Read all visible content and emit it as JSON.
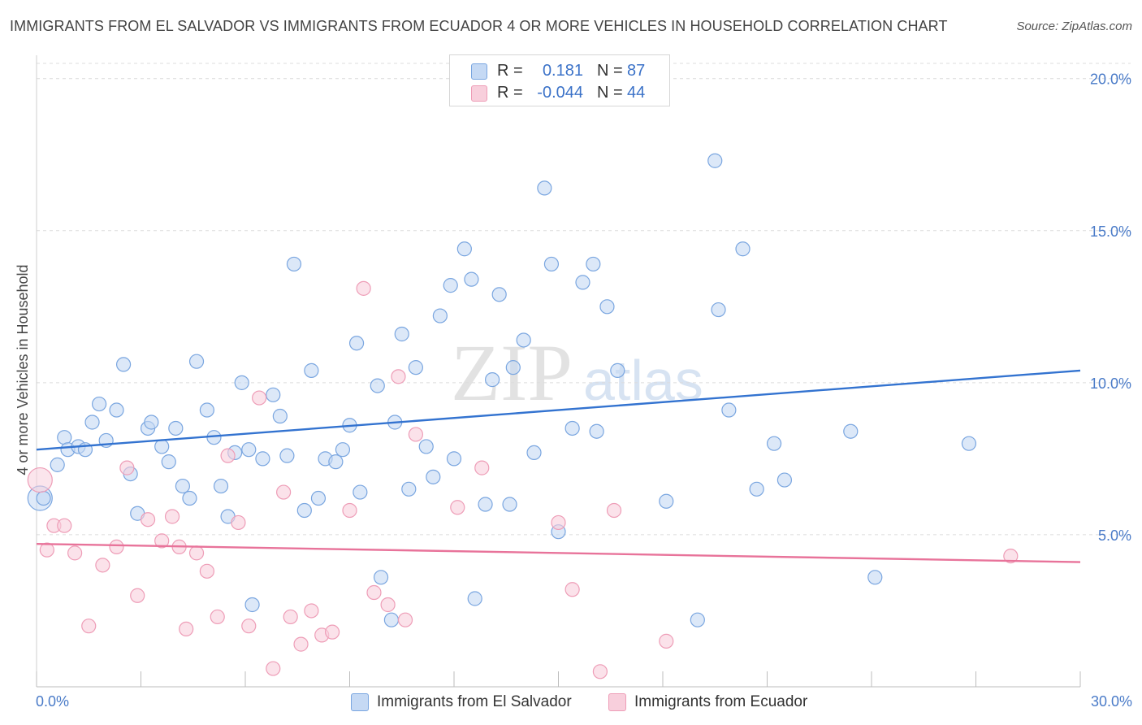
{
  "header": {
    "title": "IMMIGRANTS FROM EL SALVADOR VS IMMIGRANTS FROM ECUADOR 4 OR MORE VEHICLES IN HOUSEHOLD CORRELATION CHART",
    "source": "Source: ZipAtlas.com"
  },
  "legend": {
    "rows": [
      {
        "r_label": "R =",
        "r_value": "0.181",
        "n_label": "N =",
        "n_value": "87"
      },
      {
        "r_label": "R =",
        "r_value": "-0.044",
        "n_label": "N =",
        "n_value": "44"
      }
    ]
  },
  "watermark": {
    "zip": "ZIP",
    "atlas": "atlas"
  },
  "colors": {
    "el_salvador_fill": "#c5d9f4",
    "el_salvador_stroke": "#7aa6e0",
    "el_salvador_line": "#3373d0",
    "ecuador_fill": "#f8cfdc",
    "ecuador_stroke": "#ee9db7",
    "ecuador_line": "#e8739a",
    "tick_label": "#4a7bc8",
    "grid": "#dcdcdc"
  },
  "chart_data": {
    "type": "scatter",
    "title": "IMMIGRANTS FROM EL SALVADOR VS IMMIGRANTS FROM ECUADOR 4 OR MORE VEHICLES IN HOUSEHOLD CORRELATION CHART",
    "xlabel": "",
    "ylabel": "4 or more Vehicles in Household",
    "xlim": [
      0,
      30
    ],
    "ylim": [
      0,
      20.5
    ],
    "x_tick_labels": [
      "0.0%",
      "30.0%"
    ],
    "y_ticks": [
      5,
      10,
      15,
      20
    ],
    "y_tick_labels": [
      "5.0%",
      "10.0%",
      "15.0%",
      "20.0%"
    ],
    "grid": true,
    "legend_position": "top-center",
    "series": [
      {
        "name": "Immigrants from El Salvador",
        "trend": {
          "x": [
            0,
            30
          ],
          "y": [
            7.8,
            10.4
          ]
        },
        "points": [
          [
            0.1,
            6.2
          ],
          [
            0.2,
            6.2
          ],
          [
            0.6,
            7.3
          ],
          [
            0.8,
            8.2
          ],
          [
            0.9,
            7.8
          ],
          [
            1.2,
            7.9
          ],
          [
            1.4,
            7.8
          ],
          [
            1.6,
            8.7
          ],
          [
            1.8,
            9.3
          ],
          [
            2.0,
            8.1
          ],
          [
            2.3,
            9.1
          ],
          [
            2.5,
            10.6
          ],
          [
            2.7,
            7.0
          ],
          [
            2.9,
            5.7
          ],
          [
            3.2,
            8.5
          ],
          [
            3.3,
            8.7
          ],
          [
            3.6,
            7.9
          ],
          [
            3.8,
            7.4
          ],
          [
            4.0,
            8.5
          ],
          [
            4.2,
            6.6
          ],
          [
            4.4,
            6.2
          ],
          [
            4.6,
            10.7
          ],
          [
            4.9,
            9.1
          ],
          [
            5.1,
            8.2
          ],
          [
            5.3,
            6.6
          ],
          [
            5.5,
            5.6
          ],
          [
            5.7,
            7.7
          ],
          [
            5.9,
            10.0
          ],
          [
            6.1,
            7.8
          ],
          [
            6.5,
            7.5
          ],
          [
            6.8,
            9.6
          ],
          [
            7.0,
            8.9
          ],
          [
            7.2,
            7.6
          ],
          [
            7.4,
            13.9
          ],
          [
            7.7,
            5.8
          ],
          [
            7.9,
            10.4
          ],
          [
            8.1,
            6.2
          ],
          [
            8.3,
            7.5
          ],
          [
            8.6,
            7.4
          ],
          [
            8.8,
            7.8
          ],
          [
            9.0,
            8.6
          ],
          [
            9.2,
            11.3
          ],
          [
            9.3,
            6.4
          ],
          [
            9.8,
            9.9
          ],
          [
            10.3,
            8.7
          ],
          [
            10.5,
            11.6
          ],
          [
            10.7,
            6.5
          ],
          [
            10.9,
            10.5
          ],
          [
            11.2,
            7.9
          ],
          [
            11.4,
            6.9
          ],
          [
            11.6,
            12.2
          ],
          [
            11.9,
            13.2
          ],
          [
            12.0,
            7.5
          ],
          [
            12.3,
            14.4
          ],
          [
            12.5,
            13.4
          ],
          [
            12.9,
            6.0
          ],
          [
            13.1,
            10.1
          ],
          [
            13.3,
            12.9
          ],
          [
            13.6,
            6.0
          ],
          [
            13.7,
            10.5
          ],
          [
            14.0,
            11.4
          ],
          [
            14.3,
            7.7
          ],
          [
            14.6,
            16.4
          ],
          [
            14.8,
            13.9
          ],
          [
            15.0,
            5.1
          ],
          [
            15.4,
            8.5
          ],
          [
            15.7,
            13.3
          ],
          [
            16.0,
            13.9
          ],
          [
            16.1,
            8.4
          ],
          [
            16.4,
            12.5
          ],
          [
            16.7,
            10.4
          ],
          [
            18.1,
            6.1
          ],
          [
            19.0,
            2.2
          ],
          [
            19.5,
            17.3
          ],
          [
            19.6,
            12.4
          ],
          [
            19.9,
            9.1
          ],
          [
            20.3,
            14.4
          ],
          [
            20.7,
            6.5
          ],
          [
            21.2,
            8.0
          ],
          [
            21.5,
            6.8
          ],
          [
            23.4,
            8.4
          ],
          [
            24.1,
            3.6
          ],
          [
            26.8,
            8.0
          ],
          [
            9.9,
            3.6
          ],
          [
            10.2,
            2.2
          ],
          [
            12.6,
            2.9
          ],
          [
            6.2,
            2.7
          ]
        ]
      },
      {
        "name": "Immigrants from Ecuador",
        "trend": {
          "x": [
            0,
            30
          ],
          "y": [
            4.7,
            4.1
          ]
        },
        "points": [
          [
            0.1,
            6.8
          ],
          [
            0.5,
            5.3
          ],
          [
            0.8,
            5.3
          ],
          [
            1.1,
            4.4
          ],
          [
            1.5,
            2.0
          ],
          [
            1.9,
            4.0
          ],
          [
            2.3,
            4.6
          ],
          [
            2.6,
            7.2
          ],
          [
            2.9,
            3.0
          ],
          [
            3.2,
            5.5
          ],
          [
            3.6,
            4.8
          ],
          [
            3.9,
            5.6
          ],
          [
            4.1,
            4.6
          ],
          [
            4.3,
            1.9
          ],
          [
            4.6,
            4.4
          ],
          [
            4.9,
            3.8
          ],
          [
            5.2,
            2.3
          ],
          [
            5.5,
            7.6
          ],
          [
            5.8,
            5.4
          ],
          [
            6.1,
            2.0
          ],
          [
            6.4,
            9.5
          ],
          [
            6.8,
            0.6
          ],
          [
            7.1,
            6.4
          ],
          [
            7.3,
            2.3
          ],
          [
            7.6,
            1.4
          ],
          [
            7.9,
            2.5
          ],
          [
            8.2,
            1.7
          ],
          [
            8.5,
            1.8
          ],
          [
            9.0,
            5.8
          ],
          [
            9.4,
            13.1
          ],
          [
            9.7,
            3.1
          ],
          [
            10.1,
            2.7
          ],
          [
            10.4,
            10.2
          ],
          [
            10.6,
            2.2
          ],
          [
            10.9,
            8.3
          ],
          [
            12.1,
            5.9
          ],
          [
            12.8,
            7.2
          ],
          [
            15.0,
            5.4
          ],
          [
            15.4,
            3.2
          ],
          [
            16.2,
            0.5
          ],
          [
            16.6,
            5.8
          ],
          [
            18.1,
            1.5
          ],
          [
            28.0,
            4.3
          ],
          [
            0.3,
            4.5
          ]
        ]
      }
    ]
  },
  "bottom_legend": {
    "items": [
      {
        "label": "Immigrants from El Salvador"
      },
      {
        "label": "Immigrants from Ecuador"
      }
    ]
  }
}
